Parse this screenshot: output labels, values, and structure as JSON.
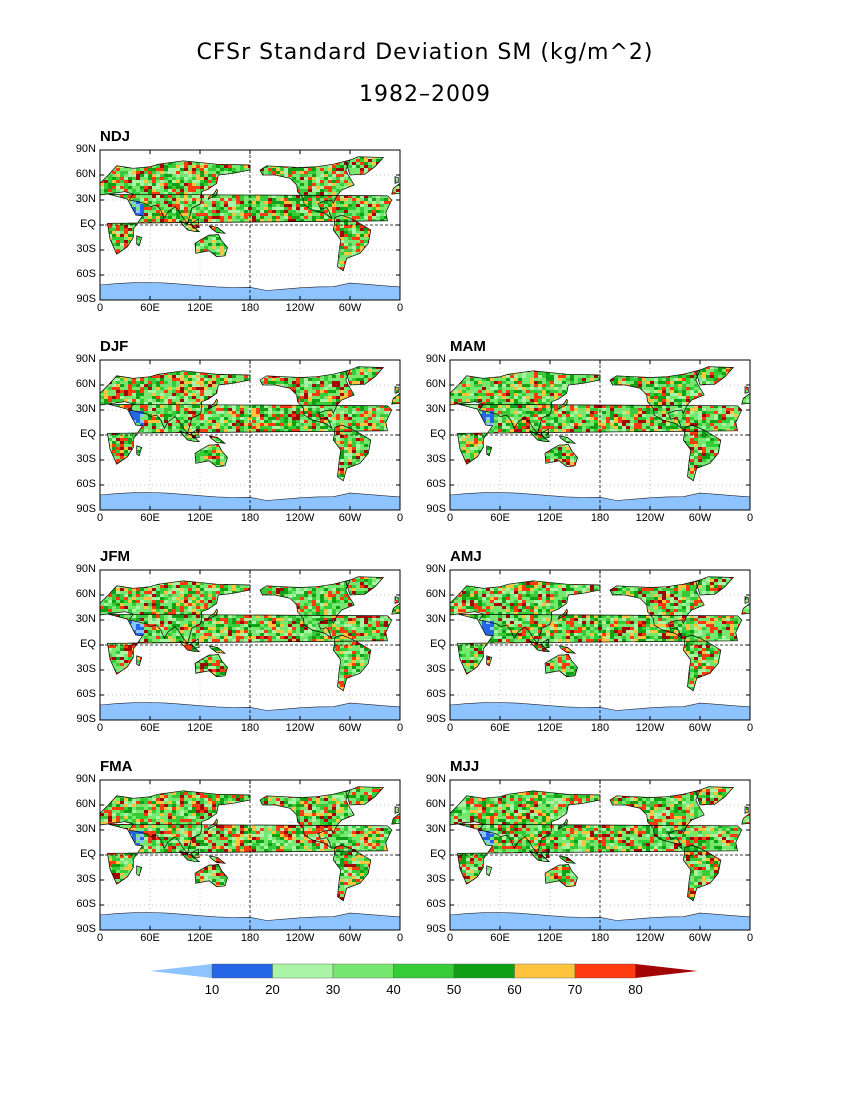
{
  "title": "CFSr Standard Deviation SM (kg/m^2)",
  "subtitle": "1982–2009",
  "y_ticks": [
    "90N",
    "60N",
    "30N",
    "EQ",
    "30S",
    "60S",
    "90S"
  ],
  "x_ticks": [
    "0",
    "60E",
    "120E",
    "180",
    "120W",
    "60W",
    "0"
  ],
  "panels": [
    {
      "label": "NDJ"
    },
    {
      "label": "DJF"
    },
    {
      "label": "MAM"
    },
    {
      "label": "JFM"
    },
    {
      "label": "AMJ"
    },
    {
      "label": "FMA"
    },
    {
      "label": "MJJ"
    }
  ],
  "colorbar": {
    "labels": [
      "10",
      "20",
      "30",
      "40",
      "50",
      "60",
      "70",
      "80"
    ],
    "colors": [
      "#8dc4ff",
      "#2566e6",
      "#a9f5a5",
      "#74e86f",
      "#35cc38",
      "#0fa115",
      "#ffc43d",
      "#ff3a0f",
      "#a30505"
    ]
  }
}
